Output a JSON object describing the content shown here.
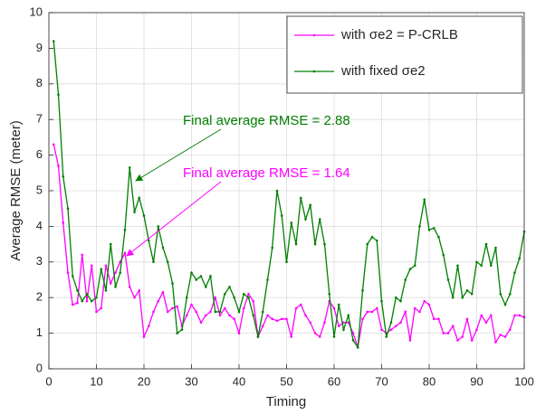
{
  "chart_data": {
    "type": "line",
    "xlabel": "Timing",
    "ylabel": "Average RMSE (meter)",
    "x": [
      1,
      2,
      3,
      4,
      5,
      6,
      7,
      8,
      9,
      10,
      11,
      12,
      13,
      14,
      15,
      16,
      17,
      18,
      19,
      20,
      21,
      22,
      23,
      24,
      25,
      26,
      27,
      28,
      29,
      30,
      31,
      32,
      33,
      34,
      35,
      36,
      37,
      38,
      39,
      40,
      41,
      42,
      43,
      44,
      45,
      46,
      47,
      48,
      49,
      50,
      51,
      52,
      53,
      54,
      55,
      56,
      57,
      58,
      59,
      60,
      61,
      62,
      63,
      64,
      65,
      66,
      67,
      68,
      69,
      70,
      71,
      72,
      73,
      74,
      75,
      76,
      77,
      78,
      79,
      80,
      81,
      82,
      83,
      84,
      85,
      86,
      87,
      88,
      89,
      90,
      91,
      92,
      93,
      94,
      95,
      96,
      97,
      98,
      99,
      100
    ],
    "series": [
      {
        "name": "with σe2 = P-CRLB",
        "color": "#ff00ff",
        "values": [
          6.3,
          5.7,
          4.1,
          2.7,
          1.8,
          1.85,
          3.2,
          1.9,
          2.9,
          1.6,
          1.7,
          2.9,
          2.4,
          2.7,
          3.0,
          3.25,
          2.3,
          2.0,
          2.2,
          0.9,
          1.2,
          1.6,
          1.9,
          2.15,
          1.6,
          1.7,
          1.75,
          1.2,
          1.5,
          1.8,
          1.6,
          1.3,
          1.5,
          1.6,
          2.0,
          1.5,
          1.7,
          1.5,
          1.4,
          1.0,
          1.7,
          2.1,
          1.9,
          0.9,
          1.2,
          1.5,
          1.4,
          1.35,
          1.4,
          1.4,
          0.9,
          1.7,
          1.8,
          1.5,
          1.3,
          1.0,
          0.9,
          1.3,
          1.9,
          1.7,
          1.2,
          1.3,
          1.3,
          1.0,
          0.6,
          1.4,
          1.6,
          1.6,
          1.7,
          1.1,
          1.0,
          1.1,
          1.2,
          1.3,
          1.6,
          0.8,
          1.7,
          1.6,
          1.9,
          1.8,
          1.4,
          1.4,
          1.0,
          1.0,
          1.2,
          0.8,
          0.9,
          1.4,
          0.8,
          1.1,
          1.5,
          1.3,
          1.5,
          0.75,
          0.95,
          0.9,
          1.1,
          1.5,
          1.5,
          1.45
        ]
      },
      {
        "name": "with fixed σe2",
        "color": "#007f00",
        "values": [
          9.2,
          7.7,
          5.4,
          4.5,
          2.6,
          2.2,
          1.9,
          2.1,
          1.9,
          2.0,
          2.8,
          2.2,
          3.5,
          2.3,
          2.7,
          3.9,
          5.65,
          4.4,
          4.8,
          4.3,
          3.6,
          3.0,
          4.0,
          3.4,
          3.0,
          2.4,
          1.0,
          1.1,
          2.0,
          2.7,
          2.5,
          2.6,
          2.3,
          2.6,
          1.6,
          1.6,
          2.1,
          2.3,
          2.0,
          1.6,
          2.1,
          2.0,
          1.5,
          0.9,
          1.6,
          2.5,
          3.4,
          5.0,
          4.3,
          3.0,
          4.1,
          3.5,
          4.8,
          4.2,
          4.6,
          3.5,
          4.2,
          3.5,
          2.1,
          0.9,
          1.8,
          1.1,
          1.5,
          0.8,
          0.6,
          2.2,
          3.5,
          3.7,
          3.6,
          1.9,
          0.9,
          1.3,
          2.0,
          1.9,
          2.5,
          2.8,
          2.9,
          4.0,
          4.75,
          3.9,
          3.95,
          3.7,
          3.2,
          2.5,
          2.0,
          2.9,
          2.0,
          2.2,
          2.1,
          3.0,
          2.9,
          3.5,
          2.9,
          3.4,
          2.1,
          1.8,
          2.1,
          2.7,
          3.1,
          3.85
        ]
      }
    ],
    "annotations": [
      {
        "text": "Final average RMSE = 2.88",
        "color": "#007f00"
      },
      {
        "text": "Final average RMSE = 1.64",
        "color": "#ff00ff"
      }
    ],
    "xlim": [
      0,
      100
    ],
    "xticks": [
      0,
      10,
      20,
      30,
      40,
      50,
      60,
      70,
      80,
      90,
      100
    ],
    "ylim": [
      0,
      10
    ],
    "yticks": [
      0,
      1,
      2,
      3,
      4,
      5,
      6,
      7,
      8,
      9,
      10
    ],
    "grid": true,
    "legend": "upper right"
  }
}
